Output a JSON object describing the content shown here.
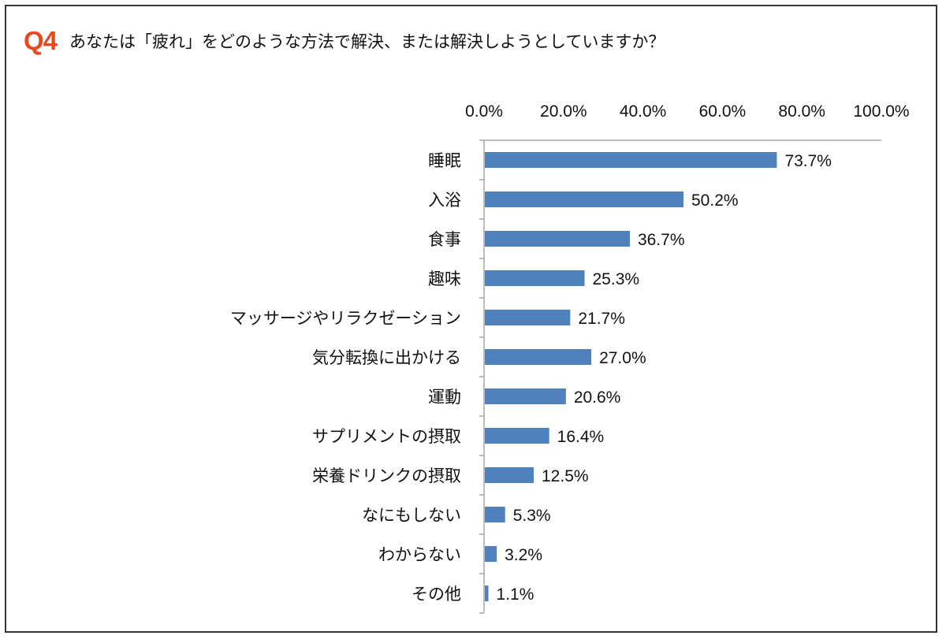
{
  "colors": {
    "accent": "#e8481c",
    "bar": "#4f81bd",
    "axis": "#a6a6a6"
  },
  "question": {
    "label": "Q4",
    "text": "あなたは「疲れ」をどのような方法で解決、または解決しようとしていますか？"
  },
  "chart_data": {
    "type": "bar",
    "orientation": "horizontal",
    "title": "",
    "xlim": [
      0,
      100
    ],
    "x_ticks": [
      "0.0%",
      "20.0%",
      "40.0%",
      "60.0%",
      "80.0%",
      "100.0%"
    ],
    "x_tick_values": [
      0,
      20,
      40,
      60,
      80,
      100
    ],
    "axis_position": "top",
    "grid": false,
    "legend": "none",
    "categories": [
      "睡眠",
      "入浴",
      "食事",
      "趣味",
      "マッサージやリラクゼーション",
      "気分転換に出かける",
      "運動",
      "サプリメントの摂取",
      "栄養ドリンクの摂取",
      "なにもしない",
      "わからない",
      "その他"
    ],
    "values": [
      73.7,
      50.2,
      36.7,
      25.3,
      21.7,
      27.0,
      20.6,
      16.4,
      12.5,
      5.3,
      3.2,
      1.1
    ],
    "value_labels": [
      "73.7%",
      "50.2%",
      "36.7%",
      "25.3%",
      "21.7%",
      "27.0%",
      "20.6%",
      "16.4%",
      "12.5%",
      "5.3%",
      "3.2%",
      "1.1%"
    ]
  }
}
